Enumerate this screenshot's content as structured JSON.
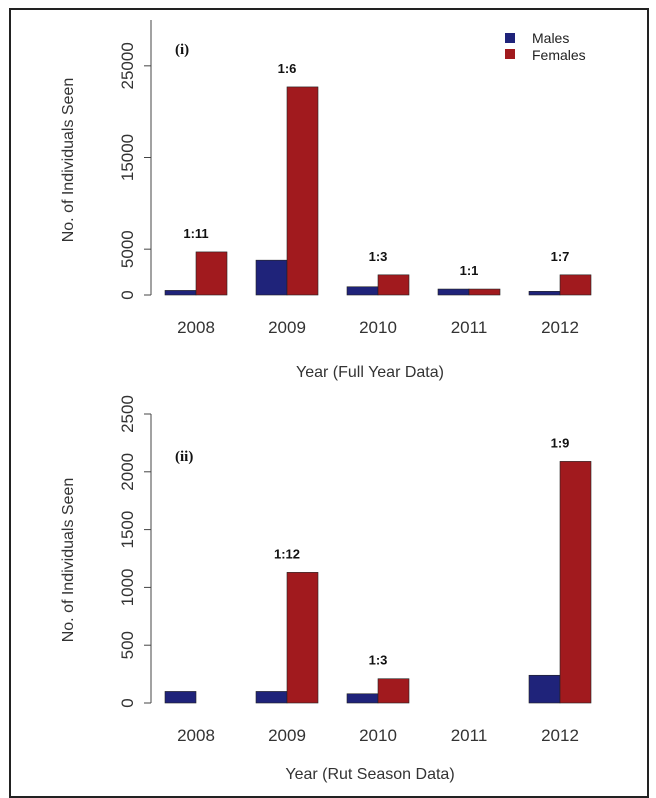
{
  "chart_data": [
    {
      "type": "bar",
      "panel_label": "(i)",
      "categories": [
        "2008",
        "2009",
        "2010",
        "2011",
        "2012"
      ],
      "series": [
        {
          "name": "Males",
          "color": "#1f237a",
          "values": [
            500,
            3800,
            900,
            650,
            400
          ]
        },
        {
          "name": "Females",
          "color": "#a11a1e",
          "values": [
            4700,
            22700,
            2200,
            650,
            2200
          ]
        }
      ],
      "ratios": [
        "1:11",
        "1:6",
        "1:3",
        "1:1",
        "1:7"
      ],
      "ylabel": "No. of Individuals Seen",
      "xlabel": "Year (Full Year Data)",
      "yticks": [
        0,
        5000,
        15000,
        25000
      ],
      "ylim": [
        0,
        30000
      ],
      "legend": {
        "placement": "top-right",
        "entries": [
          "Males",
          "Females"
        ]
      },
      "grid": false
    },
    {
      "type": "bar",
      "panel_label": "(ii)",
      "categories": [
        "2008",
        "2009",
        "2010",
        "2011",
        "2012"
      ],
      "series": [
        {
          "name": "Males",
          "color": "#1f237a",
          "values": [
            100,
            100,
            80,
            0,
            240
          ]
        },
        {
          "name": "Females",
          "color": "#a11a1e",
          "values": [
            0,
            1130,
            210,
            0,
            2090
          ]
        }
      ],
      "ratios": [
        "",
        "1:12",
        "1:3",
        "",
        "1:9"
      ],
      "ylabel": "No. of Individuals Seen",
      "xlabel": "Year (Rut Season Data)",
      "yticks": [
        0,
        500,
        1000,
        1500,
        2000,
        2500
      ],
      "ylim": [
        0,
        2500
      ],
      "grid": false
    }
  ]
}
